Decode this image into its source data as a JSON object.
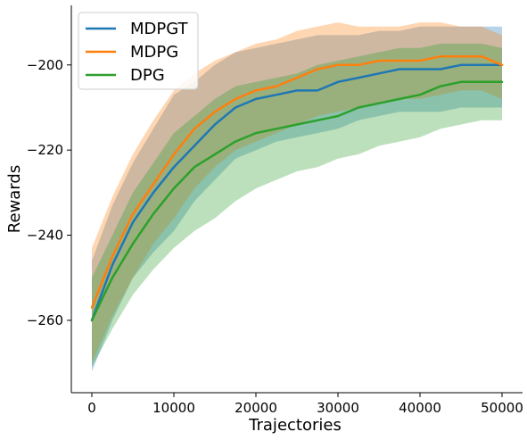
{
  "chart_data": {
    "type": "line",
    "title": "",
    "xlabel": "Trajectories",
    "ylabel": "Rewards",
    "xlim": [
      -2500,
      52500
    ],
    "ylim": [
      -277,
      -186
    ],
    "xticks": [
      0,
      10000,
      20000,
      30000,
      40000,
      50000
    ],
    "yticks": [
      -260,
      -240,
      -220,
      -200
    ],
    "xtick_labels": [
      "0",
      "10000",
      "20000",
      "30000",
      "40000",
      "50000"
    ],
    "ytick_labels": [
      "−260",
      "−240",
      "−220",
      "−200"
    ],
    "grid": false,
    "legend_position": "top-left",
    "series": [
      {
        "name": "MDPGT",
        "color": "#1f77b4",
        "x": [
          0,
          2500,
          5000,
          7500,
          10000,
          12500,
          15000,
          17500,
          20000,
          22500,
          25000,
          27500,
          30000,
          32500,
          35000,
          37500,
          40000,
          42500,
          45000,
          47500,
          50000
        ],
        "mean": [
          -260,
          -247,
          -237,
          -230,
          -224,
          -219,
          -214,
          -210,
          -208,
          -207,
          -206,
          -206,
          -204,
          -203,
          -202,
          -201,
          -201,
          -201,
          -200,
          -200,
          -200
        ],
        "upper": [
          -246,
          -233,
          -223,
          -215,
          -207,
          -204,
          -200,
          -197,
          -196,
          -195,
          -194,
          -193,
          -193,
          -193,
          -192,
          -192,
          -191,
          -191,
          -191,
          -191,
          -191
        ],
        "lower": [
          -272,
          -260,
          -250,
          -244,
          -239,
          -232,
          -227,
          -222,
          -220,
          -218,
          -217,
          -216,
          -215,
          -213,
          -212,
          -211,
          -211,
          -211,
          -210,
          -210,
          -210
        ]
      },
      {
        "name": "MDPG",
        "color": "#ff7f0e",
        "x": [
          0,
          2500,
          5000,
          7500,
          10000,
          12500,
          15000,
          17500,
          20000,
          22500,
          25000,
          27500,
          30000,
          32500,
          35000,
          37500,
          40000,
          42500,
          45000,
          47500,
          50000
        ],
        "mean": [
          -257,
          -245,
          -235,
          -228,
          -221,
          -215,
          -211,
          -208,
          -206,
          -205,
          -203,
          -201,
          -200,
          -200,
          -199,
          -199,
          -199,
          -198,
          -198,
          -198,
          -200
        ],
        "upper": [
          -243,
          -231,
          -221,
          -213,
          -206,
          -202,
          -199,
          -197,
          -195,
          -194,
          -192,
          -191,
          -190,
          -191,
          -191,
          -191,
          -190,
          -190,
          -191,
          -191,
          -193
        ],
        "lower": [
          -270,
          -259,
          -250,
          -242,
          -236,
          -229,
          -224,
          -220,
          -218,
          -216,
          -214,
          -212,
          -211,
          -210,
          -209,
          -208,
          -208,
          -207,
          -206,
          -206,
          -208
        ]
      },
      {
        "name": "DPG",
        "color": "#2ca02c",
        "x": [
          0,
          2500,
          5000,
          7500,
          10000,
          12500,
          15000,
          17500,
          20000,
          22500,
          25000,
          27500,
          30000,
          32500,
          35000,
          37500,
          40000,
          42500,
          45000,
          47500,
          50000
        ],
        "mean": [
          -260,
          -250,
          -242,
          -235,
          -229,
          -224,
          -221,
          -218,
          -216,
          -215,
          -214,
          -213,
          -212,
          -210,
          -209,
          -208,
          -207,
          -205,
          -204,
          -204,
          -204
        ],
        "upper": [
          -250,
          -240,
          -230,
          -223,
          -216,
          -212,
          -208,
          -205,
          -204,
          -203,
          -202,
          -200,
          -199,
          -198,
          -197,
          -196,
          -196,
          -195,
          -195,
          -195,
          -196
        ],
        "lower": [
          -271,
          -262,
          -254,
          -248,
          -243,
          -239,
          -236,
          -232,
          -229,
          -227,
          -225,
          -224,
          -222,
          -221,
          -219,
          -218,
          -217,
          -215,
          -214,
          -213,
          -213
        ]
      }
    ]
  }
}
